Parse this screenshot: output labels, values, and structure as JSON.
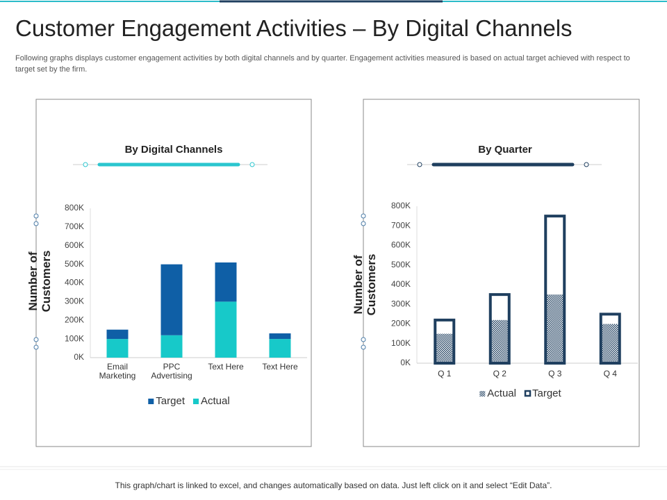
{
  "header": {
    "title": "Customer Engagement Activities – By Digital Channels",
    "description": "Following graphs displays customer engagement activities by both digital channels and by quarter. Engagement activities measured is based on actual target achieved with respect to target set by the firm."
  },
  "chart_data": [
    {
      "type": "stacked_bar",
      "title": "By Digital Channels",
      "y_label": "Number of Customers",
      "categories": [
        "Email Marketing",
        "PPC Advertising",
        "Text Here",
        "Text Here"
      ],
      "series": [
        {
          "name": "Target",
          "color": "#0f5fa6",
          "values": [
            50000,
            380000,
            210000,
            30000
          ]
        },
        {
          "name": "Actual",
          "color": "#17c9c9",
          "values": [
            100000,
            120000,
            300000,
            100000
          ]
        }
      ],
      "ylim": [
        0,
        800000
      ],
      "yticks": [
        {
          "value": 0,
          "label": "0K"
        },
        {
          "value": 100000,
          "label": "100K"
        },
        {
          "value": 200000,
          "label": "200K"
        },
        {
          "value": 300000,
          "label": "300K"
        },
        {
          "value": 400000,
          "label": "400K"
        },
        {
          "value": 500000,
          "label": "500K"
        },
        {
          "value": 600000,
          "label": "600K"
        },
        {
          "value": 700000,
          "label": "700K"
        },
        {
          "value": 800000,
          "label": "800K"
        }
      ]
    },
    {
      "type": "overlap_bar",
      "title": "By Quarter",
      "y_label": "Number of Customers",
      "categories": [
        "Q 1",
        "Q 2",
        "Q 3",
        "Q 4"
      ],
      "series": [
        {
          "name": "Actual",
          "color": "#1f3f5f",
          "values": [
            150000,
            220000,
            350000,
            200000
          ]
        },
        {
          "name": "Target",
          "color": "#1f3f5f",
          "values": [
            220000,
            350000,
            750000,
            250000
          ]
        }
      ],
      "ylim": [
        0,
        800000
      ],
      "yticks": [
        {
          "value": 0,
          "label": "0K"
        },
        {
          "value": 100000,
          "label": "100K"
        },
        {
          "value": 200000,
          "label": "200K"
        },
        {
          "value": 300000,
          "label": "300K"
        },
        {
          "value": 400000,
          "label": "400K"
        },
        {
          "value": 500000,
          "label": "500K"
        },
        {
          "value": 600000,
          "label": "600K"
        },
        {
          "value": 700000,
          "label": "700K"
        },
        {
          "value": 800000,
          "label": "800K"
        }
      ]
    }
  ],
  "footer": "This graph/chart is linked to excel, and changes automatically based on data. Just left click on it and select “Edit Data”."
}
